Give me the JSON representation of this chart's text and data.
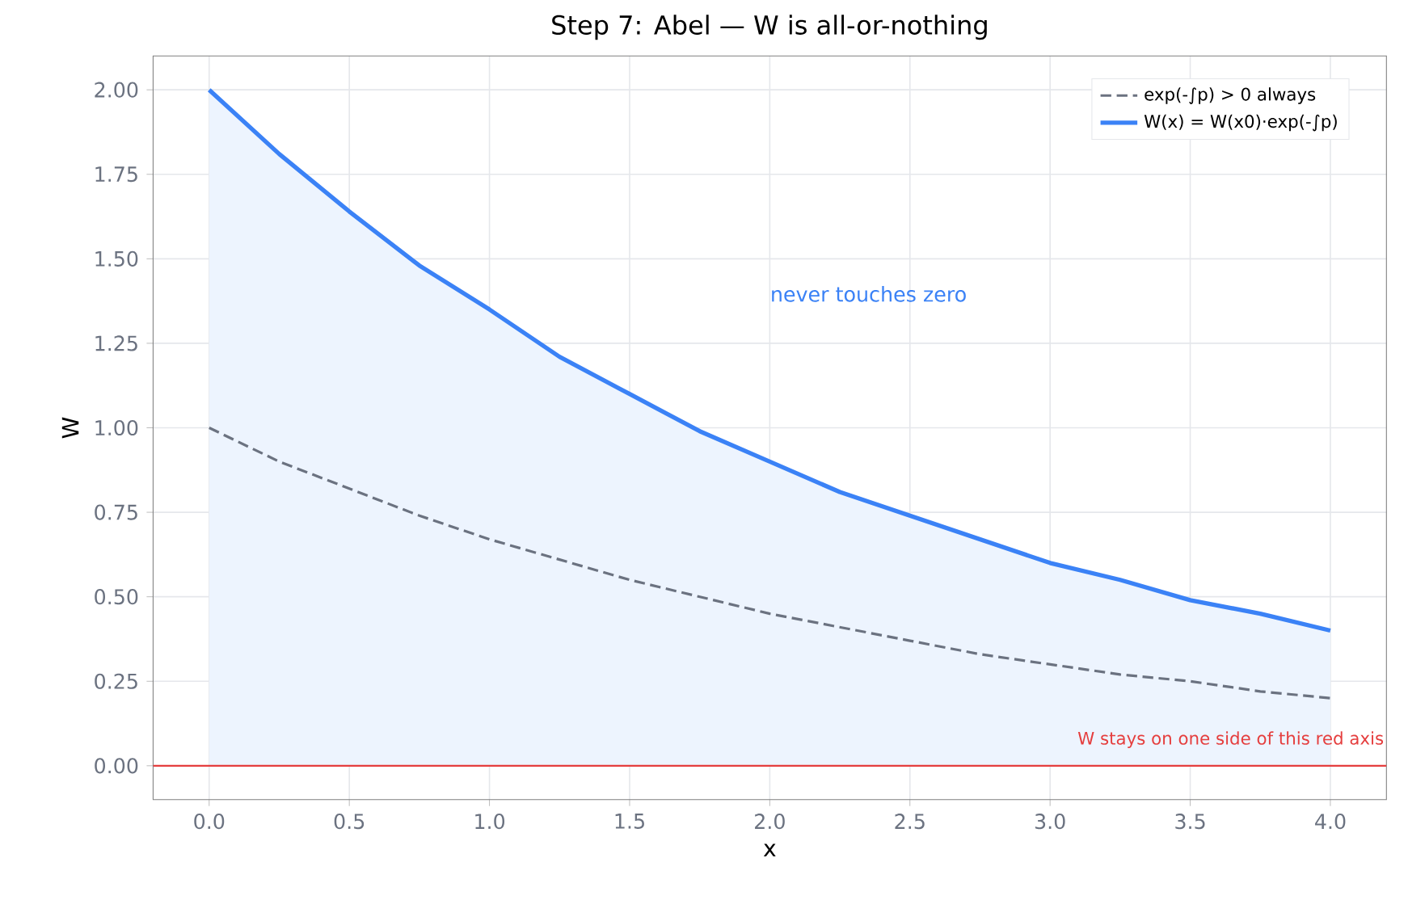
{
  "chart_data": {
    "type": "line",
    "title": "Step 7: Abel — W is all-or-nothing",
    "xlabel": "x",
    "ylabel": "W",
    "x": [
      0,
      0.25,
      0.5,
      0.75,
      1,
      1.25,
      1.5,
      1.75,
      2,
      2.25,
      2.5,
      2.75,
      3,
      3.25,
      3.5,
      3.75,
      4
    ],
    "series": [
      {
        "name": "exp(-∫p) > 0 always",
        "color": "#6b7280",
        "line_style": "dashed",
        "values": [
          1.0,
          0.9,
          0.82,
          0.74,
          0.67,
          0.61,
          0.55,
          0.5,
          0.45,
          0.41,
          0.37,
          0.33,
          0.3,
          0.27,
          0.25,
          0.22,
          0.2
        ]
      },
      {
        "name": "W(x) = W(x0)·exp(-∫p)",
        "color": "#3b82f6",
        "type": "area",
        "line_style": "solid",
        "values": [
          2.0,
          1.81,
          1.64,
          1.48,
          1.35,
          1.21,
          1.1,
          0.99,
          0.9,
          0.81,
          0.74,
          0.67,
          0.6,
          0.55,
          0.49,
          0.45,
          0.4
        ]
      }
    ],
    "xlim": [
      -0.2,
      4.2
    ],
    "xticks": [
      {
        "value": 0,
        "label": "0.0"
      },
      0.5,
      {
        "value": 1,
        "label": "1.0"
      },
      1.5,
      {
        "value": 2,
        "label": "2.0"
      },
      2.5,
      {
        "value": 3,
        "label": "3.0"
      },
      3.5,
      {
        "value": 4,
        "label": "4.0"
      }
    ],
    "ylim": [
      -0.1,
      2.1
    ],
    "yticks": [
      {
        "value": 0,
        "label": "0.00"
      },
      0.25,
      {
        "value": 0.5,
        "label": "0.50"
      },
      0.75,
      {
        "value": 1,
        "label": "1.00"
      },
      1.25,
      {
        "value": 1.5,
        "label": "1.50"
      },
      1.75,
      {
        "value": 2,
        "label": "2.00"
      }
    ],
    "ref_lines": [
      {
        "axis": "y",
        "value": 0,
        "color": "#e53e3e",
        "label": "W stays on one side of this red axis"
      }
    ],
    "annotations": [
      "never touches zero"
    ],
    "grid": true,
    "legend": "top right",
    "marker": "none"
  }
}
